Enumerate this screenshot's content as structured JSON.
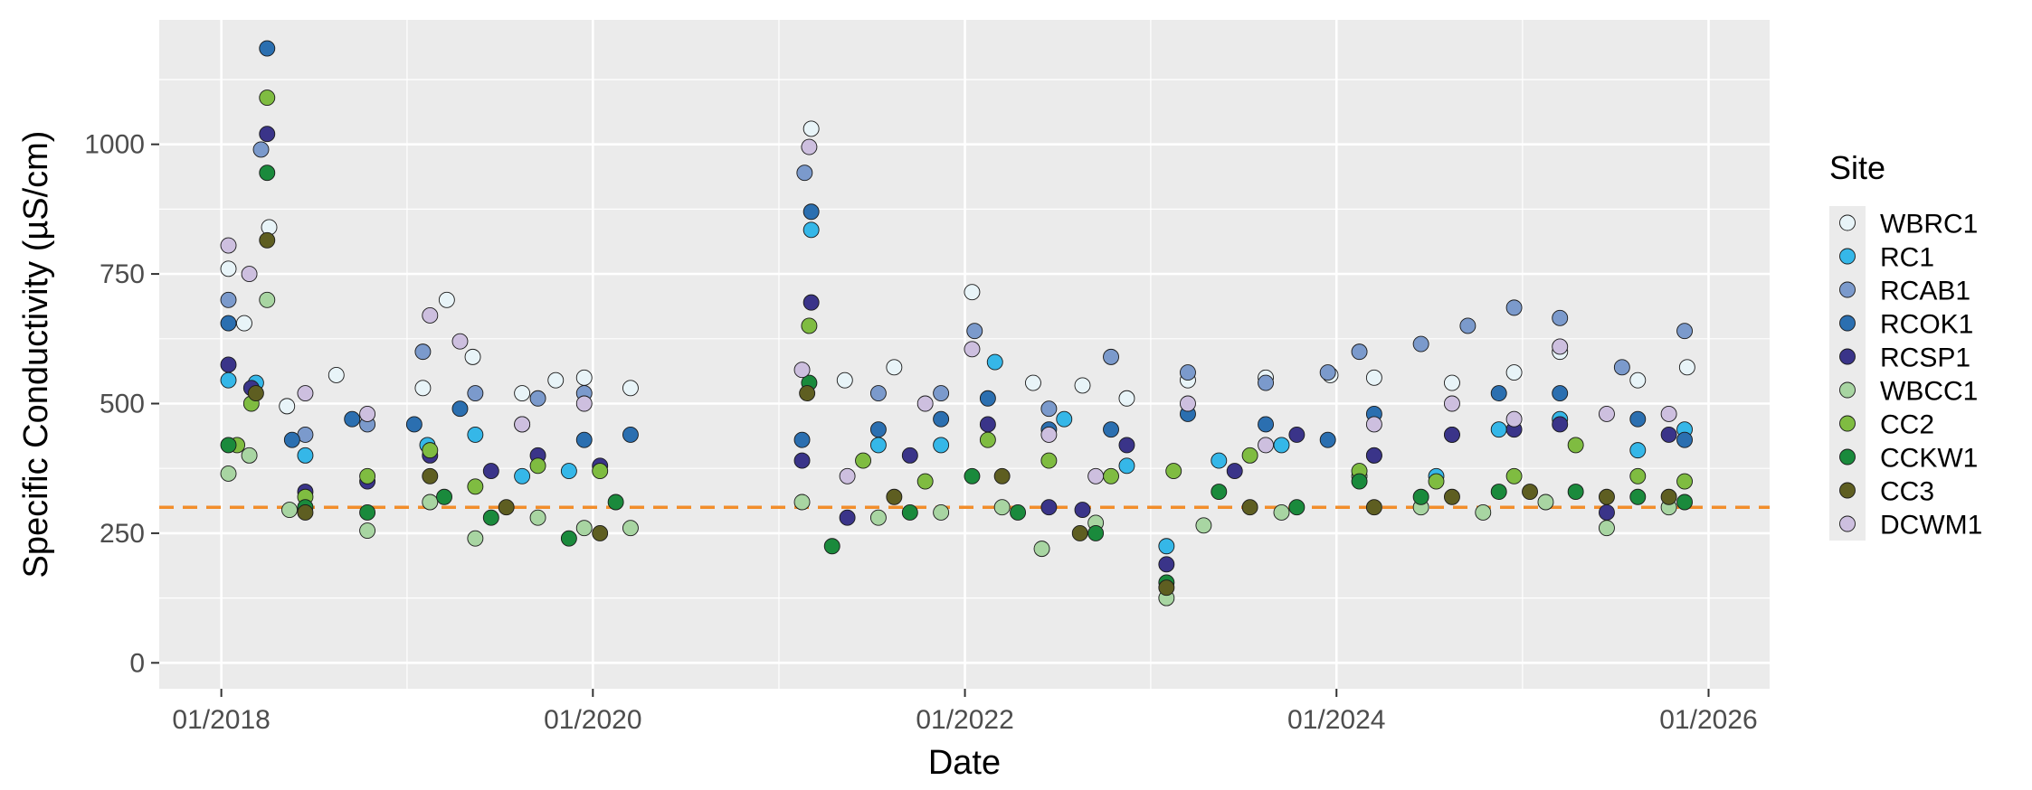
{
  "chart_data": {
    "type": "scatter",
    "title": "",
    "xlabel": "Date",
    "ylabel": "Specific Conductivity (µS/cm)",
    "x_ticks": [
      "01/2018",
      "01/2020",
      "01/2022",
      "01/2024",
      "01/2026"
    ],
    "y_ticks": [
      0,
      250,
      500,
      750,
      1000
    ],
    "xlim": [
      "2017-09-01",
      "2026-05-01"
    ],
    "ylim": [
      -50,
      1240
    ],
    "grid": true,
    "legend": {
      "title": "Site",
      "position": "right"
    },
    "reference_line": {
      "value": 300,
      "style": "dashed",
      "color": "#f28e2b"
    },
    "series": [
      {
        "name": "WBRC1",
        "color": "#e8f4f8",
        "points": [
          [
            "2018-01-15",
            760
          ],
          [
            "2018-02-15",
            655
          ],
          [
            "2018-04-05",
            840
          ],
          [
            "2018-05-10",
            495
          ],
          [
            "2018-08-15",
            555
          ],
          [
            "2019-02-01",
            530
          ],
          [
            "2019-03-20",
            700
          ],
          [
            "2019-05-10",
            590
          ],
          [
            "2019-08-15",
            520
          ],
          [
            "2019-10-20",
            545
          ],
          [
            "2019-12-15",
            550
          ],
          [
            "2020-03-15",
            530
          ],
          [
            "2021-03-05",
            1030
          ],
          [
            "2021-05-10",
            545
          ],
          [
            "2021-08-15",
            570
          ],
          [
            "2022-01-15",
            715
          ],
          [
            "2022-05-15",
            540
          ],
          [
            "2022-08-20",
            535
          ],
          [
            "2022-11-15",
            510
          ],
          [
            "2023-03-15",
            545
          ],
          [
            "2023-08-15",
            550
          ],
          [
            "2023-12-20",
            555
          ],
          [
            "2024-03-15",
            550
          ],
          [
            "2024-08-15",
            540
          ],
          [
            "2024-12-15",
            560
          ],
          [
            "2025-03-15",
            600
          ],
          [
            "2025-08-15",
            545
          ],
          [
            "2025-11-20",
            570
          ]
        ]
      },
      {
        "name": "RC1",
        "color": "#35b7e8",
        "points": [
          [
            "2018-01-15",
            545
          ],
          [
            "2018-03-10",
            540
          ],
          [
            "2018-06-15",
            400
          ],
          [
            "2019-02-10",
            420
          ],
          [
            "2019-05-15",
            440
          ],
          [
            "2019-08-15",
            360
          ],
          [
            "2019-11-15",
            370
          ],
          [
            "2021-03-05",
            835
          ],
          [
            "2021-07-15",
            420
          ],
          [
            "2021-11-15",
            420
          ],
          [
            "2022-03-01",
            580
          ],
          [
            "2022-07-15",
            470
          ],
          [
            "2022-11-15",
            380
          ],
          [
            "2023-02-01",
            225
          ],
          [
            "2023-05-15",
            390
          ],
          [
            "2023-09-15",
            420
          ],
          [
            "2024-03-15",
            400
          ],
          [
            "2024-07-15",
            360
          ],
          [
            "2024-11-15",
            450
          ],
          [
            "2025-03-15",
            470
          ],
          [
            "2025-08-15",
            410
          ],
          [
            "2025-11-15",
            450
          ]
        ]
      },
      {
        "name": "RCAB1",
        "color": "#7b9acc",
        "points": [
          [
            "2018-01-15",
            700
          ],
          [
            "2018-03-20",
            990
          ],
          [
            "2018-06-15",
            440
          ],
          [
            "2018-10-15",
            460
          ],
          [
            "2019-02-01",
            600
          ],
          [
            "2019-05-15",
            520
          ],
          [
            "2019-09-15",
            510
          ],
          [
            "2019-12-15",
            520
          ],
          [
            "2021-02-20",
            945
          ],
          [
            "2021-07-15",
            520
          ],
          [
            "2021-11-15",
            520
          ],
          [
            "2022-01-20",
            640
          ],
          [
            "2022-06-15",
            490
          ],
          [
            "2022-10-15",
            590
          ],
          [
            "2023-03-15",
            560
          ],
          [
            "2023-08-15",
            540
          ],
          [
            "2023-12-15",
            560
          ],
          [
            "2024-02-15",
            600
          ],
          [
            "2024-06-15",
            615
          ],
          [
            "2024-09-15",
            650
          ],
          [
            "2024-12-15",
            685
          ],
          [
            "2025-03-15",
            665
          ],
          [
            "2025-07-15",
            570
          ],
          [
            "2025-11-15",
            640
          ]
        ]
      },
      {
        "name": "RCOK1",
        "color": "#2b6fb0",
        "points": [
          [
            "2018-01-15",
            655
          ],
          [
            "2018-04-01",
            1185
          ],
          [
            "2018-05-20",
            430
          ],
          [
            "2018-09-15",
            470
          ],
          [
            "2019-01-15",
            460
          ],
          [
            "2019-04-15",
            490
          ],
          [
            "2019-08-15",
            460
          ],
          [
            "2019-12-15",
            430
          ],
          [
            "2020-03-15",
            440
          ],
          [
            "2021-02-15",
            430
          ],
          [
            "2021-03-05",
            870
          ],
          [
            "2021-07-15",
            450
          ],
          [
            "2021-11-15",
            470
          ],
          [
            "2022-02-15",
            510
          ],
          [
            "2022-06-15",
            450
          ],
          [
            "2022-10-15",
            450
          ],
          [
            "2023-03-15",
            480
          ],
          [
            "2023-08-15",
            460
          ],
          [
            "2023-12-15",
            430
          ],
          [
            "2024-03-15",
            480
          ],
          [
            "2024-08-15",
            440
          ],
          [
            "2024-11-15",
            520
          ],
          [
            "2025-03-15",
            520
          ],
          [
            "2025-08-15",
            470
          ],
          [
            "2025-11-15",
            430
          ]
        ]
      },
      {
        "name": "RCSP1",
        "color": "#3a3489",
        "points": [
          [
            "2018-01-15",
            575
          ],
          [
            "2018-03-01",
            530
          ],
          [
            "2018-04-01",
            1020
          ],
          [
            "2018-06-15",
            330
          ],
          [
            "2018-10-15",
            350
          ],
          [
            "2019-02-15",
            400
          ],
          [
            "2019-06-15",
            370
          ],
          [
            "2019-09-15",
            400
          ],
          [
            "2020-01-15",
            380
          ],
          [
            "2021-02-15",
            390
          ],
          [
            "2021-03-05",
            695
          ],
          [
            "2021-05-15",
            280
          ],
          [
            "2021-09-15",
            400
          ],
          [
            "2022-02-15",
            460
          ],
          [
            "2022-06-15",
            300
          ],
          [
            "2022-08-20",
            295
          ],
          [
            "2022-11-15",
            420
          ],
          [
            "2023-02-01",
            190
          ],
          [
            "2023-06-15",
            370
          ],
          [
            "2023-10-15",
            440
          ],
          [
            "2024-03-15",
            400
          ],
          [
            "2024-08-15",
            440
          ],
          [
            "2024-12-15",
            450
          ],
          [
            "2025-03-15",
            460
          ],
          [
            "2025-06-15",
            290
          ],
          [
            "2025-10-15",
            440
          ]
        ]
      },
      {
        "name": "WBCC1",
        "color": "#a8d5a2",
        "points": [
          [
            "2018-01-15",
            365
          ],
          [
            "2018-02-25",
            400
          ],
          [
            "2018-04-01",
            700
          ],
          [
            "2018-05-15",
            295
          ],
          [
            "2018-10-15",
            255
          ],
          [
            "2019-02-15",
            310
          ],
          [
            "2019-05-15",
            240
          ],
          [
            "2019-09-15",
            280
          ],
          [
            "2019-12-15",
            260
          ],
          [
            "2020-03-15",
            260
          ],
          [
            "2021-02-15",
            310
          ],
          [
            "2021-07-15",
            280
          ],
          [
            "2021-11-15",
            290
          ],
          [
            "2022-03-15",
            300
          ],
          [
            "2022-06-01",
            220
          ],
          [
            "2022-09-15",
            270
          ],
          [
            "2023-02-01",
            125
          ],
          [
            "2023-04-15",
            265
          ],
          [
            "2023-09-15",
            290
          ],
          [
            "2024-02-15",
            360
          ],
          [
            "2024-06-15",
            300
          ],
          [
            "2024-10-15",
            290
          ],
          [
            "2025-02-15",
            310
          ],
          [
            "2025-06-15",
            260
          ],
          [
            "2025-10-15",
            300
          ]
        ]
      },
      {
        "name": "CC2",
        "color": "#7fbc41",
        "points": [
          [
            "2018-02-01",
            420
          ],
          [
            "2018-03-01",
            500
          ],
          [
            "2018-04-01",
            1090
          ],
          [
            "2018-06-15",
            320
          ],
          [
            "2018-10-15",
            360
          ],
          [
            "2019-02-15",
            410
          ],
          [
            "2019-05-15",
            340
          ],
          [
            "2019-09-15",
            380
          ],
          [
            "2020-01-15",
            370
          ],
          [
            "2021-03-01",
            650
          ],
          [
            "2021-06-15",
            390
          ],
          [
            "2021-10-15",
            350
          ],
          [
            "2022-02-15",
            430
          ],
          [
            "2022-06-15",
            390
          ],
          [
            "2022-10-15",
            360
          ],
          [
            "2023-02-15",
            370
          ],
          [
            "2023-07-15",
            400
          ],
          [
            "2024-02-15",
            370
          ],
          [
            "2024-07-15",
            350
          ],
          [
            "2024-12-15",
            360
          ],
          [
            "2025-04-15",
            420
          ],
          [
            "2025-08-15",
            360
          ],
          [
            "2025-11-15",
            350
          ]
        ]
      },
      {
        "name": "CCKW1",
        "color": "#1a8a3c",
        "points": [
          [
            "2018-01-15",
            420
          ],
          [
            "2018-04-01",
            945
          ],
          [
            "2018-06-15",
            300
          ],
          [
            "2018-10-15",
            290
          ],
          [
            "2019-03-15",
            320
          ],
          [
            "2019-06-15",
            280
          ],
          [
            "2019-11-15",
            240
          ],
          [
            "2020-02-15",
            310
          ],
          [
            "2021-03-01",
            540
          ],
          [
            "2021-04-15",
            225
          ],
          [
            "2021-09-15",
            290
          ],
          [
            "2022-01-15",
            360
          ],
          [
            "2022-04-15",
            290
          ],
          [
            "2022-09-15",
            250
          ],
          [
            "2023-02-01",
            155
          ],
          [
            "2023-05-15",
            330
          ],
          [
            "2023-10-15",
            300
          ],
          [
            "2024-02-15",
            350
          ],
          [
            "2024-06-15",
            320
          ],
          [
            "2024-11-15",
            330
          ],
          [
            "2025-04-15",
            330
          ],
          [
            "2025-08-15",
            320
          ],
          [
            "2025-11-15",
            310
          ]
        ]
      },
      {
        "name": "CC3",
        "color": "#5e5e21",
        "points": [
          [
            "2018-03-10",
            520
          ],
          [
            "2018-04-01",
            815
          ],
          [
            "2018-06-15",
            290
          ],
          [
            "2019-02-15",
            360
          ],
          [
            "2019-07-15",
            300
          ],
          [
            "2020-01-15",
            250
          ],
          [
            "2021-02-25",
            520
          ],
          [
            "2021-08-15",
            320
          ],
          [
            "2022-03-15",
            360
          ],
          [
            "2022-08-15",
            250
          ],
          [
            "2023-02-01",
            145
          ],
          [
            "2023-07-15",
            300
          ],
          [
            "2024-03-15",
            300
          ],
          [
            "2024-08-15",
            320
          ],
          [
            "2025-01-15",
            330
          ],
          [
            "2025-06-15",
            320
          ],
          [
            "2025-10-15",
            320
          ]
        ]
      },
      {
        "name": "DCWM1",
        "color": "#cdbfdf",
        "points": [
          [
            "2018-01-15",
            805
          ],
          [
            "2018-02-25",
            750
          ],
          [
            "2018-06-15",
            520
          ],
          [
            "2018-10-15",
            480
          ],
          [
            "2019-02-15",
            670
          ],
          [
            "2019-04-15",
            620
          ],
          [
            "2019-08-15",
            460
          ],
          [
            "2019-12-15",
            500
          ],
          [
            "2021-02-15",
            565
          ],
          [
            "2021-03-01",
            995
          ],
          [
            "2021-05-15",
            360
          ],
          [
            "2021-10-15",
            500
          ],
          [
            "2022-01-15",
            605
          ],
          [
            "2022-06-15",
            440
          ],
          [
            "2022-09-15",
            360
          ],
          [
            "2023-03-15",
            500
          ],
          [
            "2023-08-15",
            420
          ],
          [
            "2024-03-15",
            460
          ],
          [
            "2024-08-15",
            500
          ],
          [
            "2024-12-15",
            470
          ],
          [
            "2025-03-15",
            610
          ],
          [
            "2025-06-15",
            480
          ],
          [
            "2025-10-15",
            480
          ]
        ]
      }
    ]
  }
}
